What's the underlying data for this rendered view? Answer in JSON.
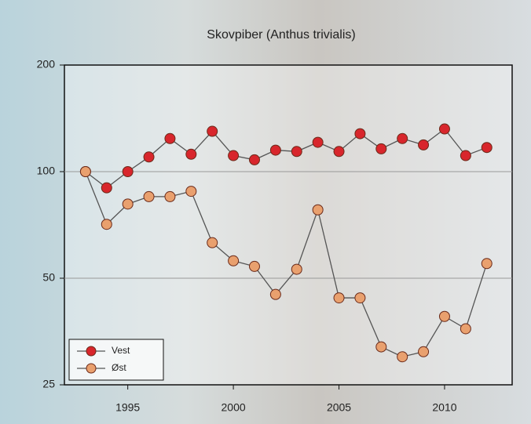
{
  "chart_data": {
    "type": "line",
    "title": "Skovpiber (Anthus trivialis)",
    "x": [
      1993,
      1994,
      1995,
      1996,
      1997,
      1998,
      1999,
      2000,
      2001,
      2002,
      2003,
      2004,
      2005,
      2006,
      2007,
      2008,
      2009,
      2010,
      2011,
      2012
    ],
    "series": [
      {
        "name": "Vest",
        "color": "#d8262c",
        "values": [
          100,
          90,
          100,
          110,
          124,
          112,
          130,
          111,
          108,
          115,
          114,
          121,
          114,
          128,
          116,
          124,
          119,
          132,
          111,
          117
        ]
      },
      {
        "name": "Øst",
        "color": "#e9a06e",
        "values": [
          100,
          71,
          81,
          85,
          85,
          88,
          63,
          56,
          54,
          45,
          53,
          78,
          44,
          44,
          32,
          30,
          31,
          39,
          36,
          55
        ]
      }
    ],
    "xlim": [
      1992,
      2013.2
    ],
    "xticks": [
      1995,
      2000,
      2005,
      2010
    ],
    "ylim": [
      25,
      200
    ],
    "yticks": [
      25,
      50,
      100,
      200
    ],
    "log_y": true,
    "grid_lines": [
      50,
      100
    ],
    "legend": "lower-left"
  }
}
